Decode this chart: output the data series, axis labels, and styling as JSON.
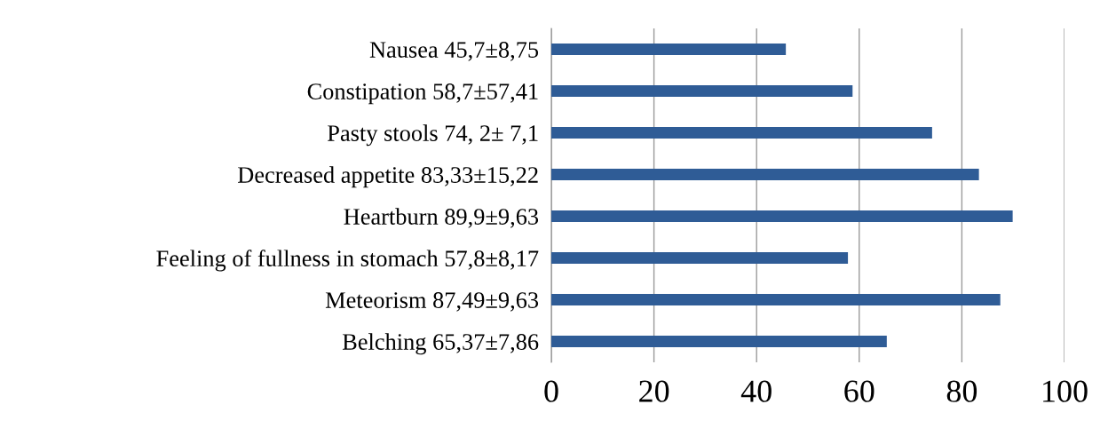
{
  "chart_data": {
    "type": "bar",
    "orientation": "horizontal",
    "categories": [
      "Nausea 45,7±8,75",
      "Constipation 58,7±57,41",
      "Pasty stools 74, 2± 7,1",
      "Decreased appetite 83,33±15,22",
      "Heartburn 89,9±9,63",
      "Feeling of fullness in stomach 57,8±8,17",
      "Meteorism 87,49±9,63",
      "Belching 65,37±7,86"
    ],
    "values": [
      45.7,
      58.7,
      74.2,
      83.33,
      89.9,
      57.8,
      87.49,
      65.37
    ],
    "color": "#2f5c96",
    "xlim": [
      0,
      100
    ],
    "xticks": [
      0,
      20,
      40,
      60,
      80,
      100
    ],
    "grid": "x",
    "legend": false
  }
}
